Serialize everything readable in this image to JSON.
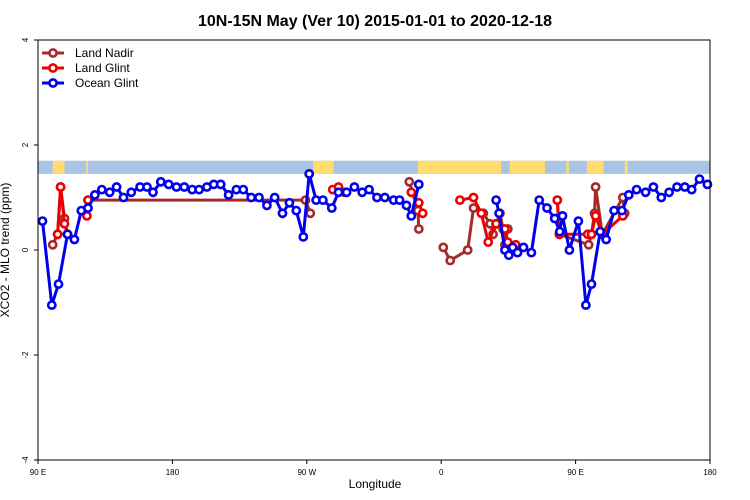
{
  "chart_data": {
    "type": "line",
    "title": "10N-15N May (Ver 10)   2015-01-01 to 2020-12-18",
    "xlabel": "Longitude",
    "ylabel": "XCO2 - MLO trend (ppm)",
    "xlim": [
      0,
      360
    ],
    "ylim": [
      -4,
      4
    ],
    "x_ticks": [
      {
        "value": 0,
        "label": "90 E"
      },
      {
        "value": 72,
        "label": "180"
      },
      {
        "value": 144,
        "label": "90 W"
      },
      {
        "value": 216,
        "label": "0"
      },
      {
        "value": 288,
        "label": "90 E"
      },
      {
        "value": 360,
        "label": "180"
      }
    ],
    "y_ticks": [
      -4,
      -2,
      0,
      2,
      4
    ],
    "legend_position": "top-left",
    "series": [
      {
        "name": "Land Nadir",
        "color": "#a52a2a",
        "segments": [
          [
            [
              7.9,
              0.1
            ],
            [
              10.5,
              0.3
            ],
            [
              12.1,
              1.2
            ],
            [
              14.2,
              0.6
            ],
            [
              15.8,
              0.3
            ]
          ],
          [
            [
              26.8,
              0.95
            ],
            [
              143.3,
              0.95
            ],
            [
              145.9,
              0.7
            ]
          ],
          [
            [
              198.9,
              1.3
            ],
            [
              203.5,
              0.75
            ],
            [
              204.0,
              0.4
            ]
          ],
          [
            [
              217.1,
              0.05
            ],
            [
              220.8,
              -0.2
            ],
            [
              230.2,
              0
            ],
            [
              233.3,
              0.8
            ],
            [
              238.6,
              0.7
            ],
            [
              242.2,
              0.5
            ],
            [
              243.8,
              0.3
            ],
            [
              245.4,
              0.5
            ],
            [
              247.5,
              0.7
            ],
            [
              249.1,
              0.4
            ],
            [
              250.1,
              0.1
            ],
            [
              251.7,
              0.4
            ]
          ],
          [
            [
              278.2,
              0.95
            ],
            [
              279.3,
              0.3
            ],
            [
              295.0,
              0.1
            ],
            [
              296.5,
              0.3
            ],
            [
              298.1,
              0.7
            ],
            [
              298.7,
              1.2
            ],
            [
              302.3,
              0.3
            ],
            [
              313.3,
              1.0
            ],
            [
              314.3,
              0.7
            ]
          ]
        ]
      },
      {
        "name": "Land Glint",
        "color": "#ee0000",
        "segments": [
          [
            [
              10.5,
              0.3
            ],
            [
              12.1,
              1.2
            ],
            [
              14.2,
              0.5
            ],
            [
              15.8,
              0.3
            ]
          ],
          [
            [
              26.2,
              0.65
            ],
            [
              26.8,
              0.95
            ]
          ],
          [
            [
              157.9,
              1.15
            ],
            [
              161.0,
              1.2
            ],
            [
              164.2,
              1.1
            ]
          ],
          [
            [
              200.0,
              1.1
            ],
            [
              204.0,
              0.9
            ],
            [
              206.1,
              0.7
            ]
          ],
          [
            [
              226.0,
              0.95
            ],
            [
              233.3,
              1.0
            ],
            [
              237.5,
              0.7
            ],
            [
              241.2,
              0.15
            ],
            [
              245.4,
              0.5
            ],
            [
              250.1,
              0.4
            ],
            [
              251.7,
              0.15
            ],
            [
              255.9,
              0.1
            ]
          ],
          [
            [
              278.2,
              0.95
            ],
            [
              279.3,
              0.3
            ],
            [
              294.5,
              0.3
            ],
            [
              296.5,
              0.3
            ],
            [
              298.7,
              0.65
            ],
            [
              302.3,
              0.3
            ],
            [
              313.3,
              0.65
            ]
          ]
        ]
      },
      {
        "name": "Ocean Glint",
        "color": "#0000ee",
        "segments": [
          [
            [
              2.4,
              0.55
            ],
            [
              7.4,
              -1.05
            ],
            [
              11.0,
              -0.65
            ],
            [
              15.8,
              0.3
            ],
            [
              19.5,
              0.2
            ],
            [
              23.2,
              0.75
            ],
            [
              26.8,
              0.8
            ],
            [
              30.5,
              1.05
            ],
            [
              34.2,
              1.15
            ],
            [
              38.4,
              1.1
            ],
            [
              42.1,
              1.2
            ],
            [
              45.8,
              1.0
            ],
            [
              50.0,
              1.1
            ],
            [
              54.7,
              1.2
            ],
            [
              58.4,
              1.2
            ],
            [
              61.6,
              1.1
            ],
            [
              65.8,
              1.3
            ],
            [
              70.0,
              1.25
            ],
            [
              74.2,
              1.2
            ],
            [
              78.4,
              1.2
            ],
            [
              82.6,
              1.15
            ],
            [
              86.3,
              1.15
            ],
            [
              90.5,
              1.2
            ],
            [
              94.2,
              1.25
            ],
            [
              97.9,
              1.25
            ],
            [
              102.1,
              1.05
            ],
            [
              106.3,
              1.15
            ],
            [
              110.0,
              1.15
            ],
            [
              114.2,
              1.0
            ],
            [
              118.4,
              1.0
            ],
            [
              122.6,
              0.85
            ],
            [
              126.8,
              1.0
            ],
            [
              131.0,
              0.7
            ],
            [
              134.7,
              0.9
            ],
            [
              138.4,
              0.75
            ],
            [
              142.1,
              0.25
            ],
            [
              145.3,
              1.45
            ],
            [
              149.0,
              0.95
            ],
            [
              152.6,
              0.95
            ],
            [
              157.4,
              0.8
            ],
            [
              161.0,
              1.1
            ],
            [
              165.3,
              1.1
            ],
            [
              169.5,
              1.2
            ],
            [
              173.7,
              1.1
            ],
            [
              177.4,
              1.15
            ],
            [
              181.6,
              1.0
            ],
            [
              185.8,
              1.0
            ],
            [
              190.5,
              0.95
            ],
            [
              193.7,
              0.95
            ],
            [
              197.4,
              0.85
            ],
            [
              200.0,
              0.65
            ],
            [
              204.0,
              1.25
            ]
          ],
          [
            [
              245.4,
              0.95
            ],
            [
              247.0,
              0.7
            ],
            [
              250.1,
              0
            ],
            [
              252.2,
              -0.1
            ],
            [
              254.3,
              0.05
            ],
            [
              256.9,
              -0.05
            ],
            [
              260.1,
              0.05
            ],
            [
              264.3,
              -0.05
            ],
            [
              268.5,
              0.95
            ],
            [
              272.7,
              0.8
            ],
            [
              276.8,
              0.6
            ],
            [
              279.5,
              0.35
            ],
            [
              281.0,
              0.65
            ],
            [
              284.7,
              0
            ],
            [
              289.5,
              0.55
            ],
            [
              293.5,
              -1.05
            ],
            [
              296.5,
              -0.65
            ],
            [
              301.2,
              0.35
            ],
            [
              304.4,
              0.2
            ],
            [
              308.6,
              0.75
            ],
            [
              312.8,
              0.75
            ],
            [
              316.5,
              1.05
            ],
            [
              320.7,
              1.15
            ],
            [
              325.5,
              1.1
            ],
            [
              329.7,
              1.2
            ],
            [
              333.9,
              1.0
            ],
            [
              338.1,
              1.1
            ],
            [
              342.3,
              1.2
            ],
            [
              346.5,
              1.2
            ],
            [
              350.2,
              1.15
            ],
            [
              354.4,
              1.35
            ],
            [
              358.6,
              1.25
            ]
          ]
        ]
      }
    ],
    "background_band": {
      "y_range": [
        1.45,
        1.7
      ],
      "ocean_color": "#aac4e6",
      "land_color": "#ffdb70",
      "land_x_ranges": [
        [
          7.9,
          14.2
        ],
        [
          25.8,
          26.8
        ],
        [
          147.4,
          158.4
        ],
        [
          203.5,
          248.1
        ],
        [
          252.7,
          271.6
        ],
        [
          283.1,
          284.4
        ],
        [
          294.0,
          302.9
        ],
        [
          314.3,
          315.9
        ]
      ]
    },
    "grid": false
  }
}
